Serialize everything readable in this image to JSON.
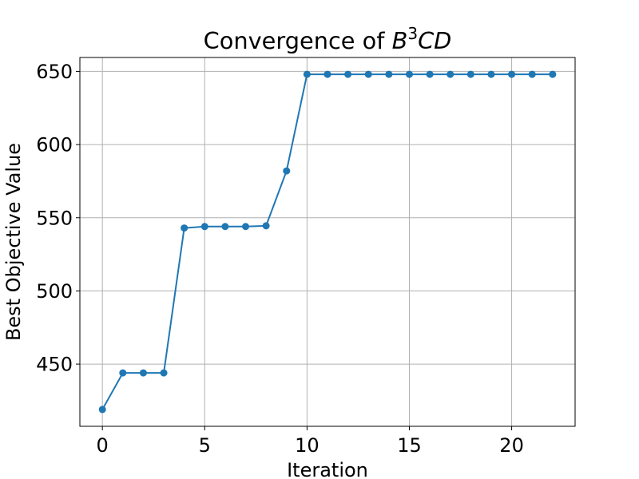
{
  "chart_data": {
    "type": "line",
    "title": {
      "prefix": "Convergence of ",
      "base": "B",
      "superscript": "3",
      "suffix": "CD"
    },
    "xlabel": "Iteration",
    "ylabel": "Best Objective Value",
    "xlim": [
      -1.1,
      23.1
    ],
    "ylim": [
      407.5,
      659.5
    ],
    "xticks": [
      0,
      5,
      10,
      15,
      20
    ],
    "yticks": [
      450,
      500,
      550,
      600,
      650
    ],
    "grid": true,
    "series": [
      {
        "color": "#1f77b4",
        "marker": "circle",
        "x": [
          0,
          1,
          2,
          3,
          4,
          5,
          6,
          7,
          8,
          9,
          10,
          11,
          12,
          13,
          14,
          15,
          16,
          17,
          18,
          19,
          20,
          21,
          22
        ],
        "values": [
          419,
          444,
          444,
          444,
          543,
          544,
          544,
          544,
          544.5,
          582,
          648,
          648,
          648,
          648,
          648,
          648,
          648,
          648,
          648,
          648,
          648,
          648,
          648
        ]
      }
    ]
  }
}
